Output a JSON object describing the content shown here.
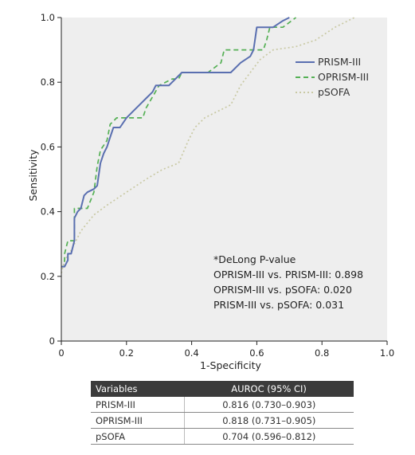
{
  "chart_data": {
    "type": "line",
    "xlabel": "1-Specificity",
    "ylabel": "Sensitivity",
    "xlim": [
      0,
      1
    ],
    "ylim": [
      0,
      1
    ],
    "xticks": [
      0,
      0.2,
      0.4,
      0.6,
      0.8,
      1.0
    ],
    "xtick_labels": [
      "0",
      "0.2",
      "0.4",
      "0.6",
      "0.8",
      "1.0"
    ],
    "yticks": [
      0,
      0.2,
      0.4,
      0.6,
      0.8,
      1.0
    ],
    "ytick_labels": [
      "0",
      "0.2",
      "0.4",
      "0.6",
      "0.8",
      "1.0"
    ],
    "grid": false,
    "legend_position": "top-right",
    "series": [
      {
        "name": "PRISM-III",
        "color": "#5a6fb0",
        "style": "solid",
        "points": [
          [
            0,
            0.23
          ],
          [
            0.01,
            0.23
          ],
          [
            0.02,
            0.25
          ],
          [
            0.02,
            0.27
          ],
          [
            0.03,
            0.27
          ],
          [
            0.04,
            0.31
          ],
          [
            0.04,
            0.38
          ],
          [
            0.05,
            0.4
          ],
          [
            0.06,
            0.41
          ],
          [
            0.07,
            0.45
          ],
          [
            0.08,
            0.46
          ],
          [
            0.1,
            0.47
          ],
          [
            0.11,
            0.48
          ],
          [
            0.12,
            0.55
          ],
          [
            0.13,
            0.58
          ],
          [
            0.14,
            0.6
          ],
          [
            0.15,
            0.63
          ],
          [
            0.16,
            0.66
          ],
          [
            0.18,
            0.66
          ],
          [
            0.2,
            0.69
          ],
          [
            0.22,
            0.71
          ],
          [
            0.24,
            0.73
          ],
          [
            0.26,
            0.75
          ],
          [
            0.28,
            0.77
          ],
          [
            0.29,
            0.79
          ],
          [
            0.33,
            0.79
          ],
          [
            0.37,
            0.83
          ],
          [
            0.52,
            0.83
          ],
          [
            0.55,
            0.86
          ],
          [
            0.58,
            0.88
          ],
          [
            0.59,
            0.9
          ],
          [
            0.6,
            0.97
          ],
          [
            0.65,
            0.97
          ],
          [
            0.68,
            0.99
          ],
          [
            0.7,
            1.0
          ]
        ]
      },
      {
        "name": "OPRISM-III",
        "color": "#55b055",
        "style": "dashed",
        "points": [
          [
            0,
            0.23
          ],
          [
            0.01,
            0.23
          ],
          [
            0.01,
            0.27
          ],
          [
            0.02,
            0.31
          ],
          [
            0.04,
            0.31
          ],
          [
            0.04,
            0.41
          ],
          [
            0.08,
            0.41
          ],
          [
            0.1,
            0.46
          ],
          [
            0.11,
            0.54
          ],
          [
            0.12,
            0.59
          ],
          [
            0.14,
            0.62
          ],
          [
            0.15,
            0.67
          ],
          [
            0.17,
            0.69
          ],
          [
            0.22,
            0.69
          ],
          [
            0.25,
            0.69
          ],
          [
            0.26,
            0.72
          ],
          [
            0.3,
            0.79
          ],
          [
            0.34,
            0.81
          ],
          [
            0.36,
            0.81
          ],
          [
            0.37,
            0.83
          ],
          [
            0.45,
            0.83
          ],
          [
            0.49,
            0.86
          ],
          [
            0.5,
            0.9
          ],
          [
            0.58,
            0.9
          ],
          [
            0.62,
            0.9
          ],
          [
            0.63,
            0.93
          ],
          [
            0.64,
            0.97
          ],
          [
            0.68,
            0.97
          ],
          [
            0.72,
            1.0
          ]
        ]
      },
      {
        "name": "pSOFA",
        "color": "#c9c9a4",
        "style": "dotted",
        "points": [
          [
            0,
            0.21
          ],
          [
            0.01,
            0.25
          ],
          [
            0.03,
            0.28
          ],
          [
            0.06,
            0.34
          ],
          [
            0.1,
            0.39
          ],
          [
            0.14,
            0.42
          ],
          [
            0.2,
            0.46
          ],
          [
            0.26,
            0.5
          ],
          [
            0.31,
            0.53
          ],
          [
            0.36,
            0.55
          ],
          [
            0.39,
            0.62
          ],
          [
            0.41,
            0.66
          ],
          [
            0.44,
            0.69
          ],
          [
            0.48,
            0.71
          ],
          [
            0.52,
            0.73
          ],
          [
            0.55,
            0.79
          ],
          [
            0.58,
            0.83
          ],
          [
            0.61,
            0.87
          ],
          [
            0.65,
            0.9
          ],
          [
            0.72,
            0.91
          ],
          [
            0.78,
            0.93
          ],
          [
            0.84,
            0.97
          ],
          [
            0.9,
            1.0
          ]
        ]
      }
    ],
    "annotations": [
      "*DeLong P-value",
      "OPRISM-III vs. PRISM-III: 0.898",
      "OPRISM-III vs. pSOFA: 0.020",
      "PRISM-III vs. pSOFA: 0.031"
    ]
  },
  "table": {
    "headers": [
      "Variables",
      "AUROC (95% CI)"
    ],
    "rows": [
      [
        "PRISM-III",
        "0.816 (0.730–0.903)"
      ],
      [
        "OPRISM-III",
        "0.818 (0.731–0.905)"
      ],
      [
        "pSOFA",
        "0.704 (0.596–0.812)"
      ]
    ]
  },
  "colors": {
    "plot_background": "#eeeeee",
    "table_header": "#3b3b3b"
  }
}
